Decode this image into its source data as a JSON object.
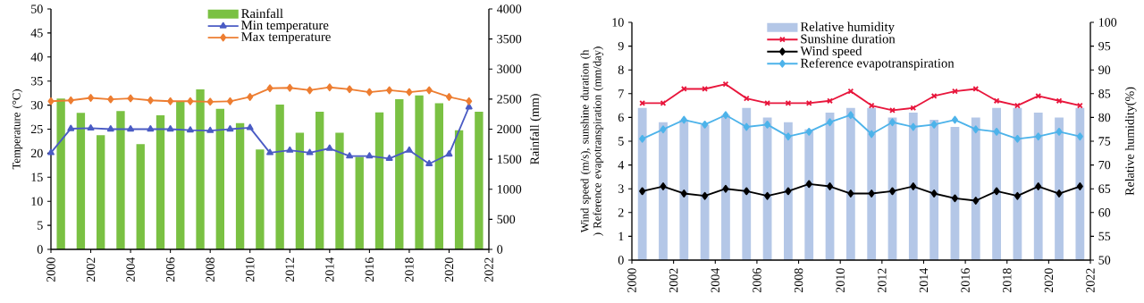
{
  "chart_data": [
    {
      "type": "line",
      "ylabel": "Temperature (°C)",
      "y2label": "Rainfall (mm)",
      "xlim": [
        2000,
        2022
      ],
      "xticks": [
        2000,
        2002,
        2004,
        2006,
        2008,
        2010,
        2012,
        2014,
        2016,
        2018,
        2020,
        2022
      ],
      "ylim": [
        0,
        50
      ],
      "yticks": [
        0,
        5,
        10,
        15,
        20,
        25,
        30,
        35,
        40,
        45,
        50
      ],
      "y2lim": [
        0,
        4000
      ],
      "y2ticks": [
        0,
        500,
        1000,
        1500,
        2000,
        2500,
        3000,
        3500,
        4000
      ],
      "legend": "top",
      "series": [
        {
          "name": "Rainfall",
          "type": "bar",
          "axis": "y2",
          "color": "#7ac143",
          "x": [
            2000.5,
            2001.5,
            2002.5,
            2003.5,
            2004.5,
            2005.5,
            2006.5,
            2007.5,
            2008.5,
            2009.5,
            2010.5,
            2011.5,
            2012.5,
            2013.5,
            2014.5,
            2015.5,
            2016.5,
            2017.5,
            2018.5,
            2019.5,
            2020.5,
            2021.5
          ],
          "values": [
            2510,
            2270,
            1900,
            2300,
            1750,
            2230,
            2460,
            2660,
            2340,
            2100,
            1660,
            2410,
            1940,
            2290,
            1940,
            1540,
            2280,
            2500,
            2560,
            2430,
            1980,
            2290
          ]
        },
        {
          "name": "Min temperature",
          "marker": "triangle",
          "color": "#4a5bc4",
          "x": [
            2000,
            2001,
            2002,
            2003,
            2004,
            2005,
            2006,
            2007,
            2008,
            2009,
            2010,
            2011,
            2012,
            2013,
            2014,
            2015,
            2016,
            2017,
            2018,
            2019,
            2020,
            2021
          ],
          "values": [
            20.1,
            25.1,
            25.2,
            25.0,
            25.0,
            25.0,
            25.0,
            24.8,
            24.7,
            25.0,
            25.3,
            20.1,
            20.6,
            20.1,
            21.0,
            19.4,
            19.4,
            18.9,
            20.6,
            17.8,
            19.8,
            29.6
          ]
        },
        {
          "name": "Max temperature",
          "marker": "diamond",
          "color": "#ed7d31",
          "x": [
            2000,
            2001,
            2002,
            2003,
            2004,
            2005,
            2006,
            2007,
            2008,
            2009,
            2010,
            2011,
            2012,
            2013,
            2014,
            2015,
            2016,
            2017,
            2018,
            2019,
            2020,
            2021
          ],
          "values": [
            30.8,
            31.0,
            31.5,
            31.2,
            31.4,
            31.0,
            30.8,
            30.8,
            30.7,
            30.8,
            31.7,
            33.5,
            33.6,
            33.1,
            33.7,
            33.3,
            32.7,
            33.1,
            32.7,
            33.1,
            31.7,
            30.8
          ]
        }
      ]
    },
    {
      "type": "line",
      "ylabel": "Wind speed (m/s), sunshine duration (h ) Reference evapotranspiration (mm/day)",
      "y2label": "Relative humidity(%)",
      "xlim": [
        2000,
        2022
      ],
      "xticks": [
        2000,
        2002,
        2004,
        2006,
        2008,
        2010,
        2012,
        2014,
        2016,
        2018,
        2020,
        2022
      ],
      "ylim": [
        0,
        10
      ],
      "yticks": [
        0,
        1,
        2,
        3,
        4,
        5,
        6,
        7,
        8,
        9,
        10
      ],
      "y2lim": [
        50,
        100
      ],
      "y2ticks": [
        50,
        55,
        60,
        65,
        70,
        75,
        80,
        85,
        90,
        95,
        100
      ],
      "legend": "top",
      "x": [
        2000.5,
        2001.5,
        2002.5,
        2003.5,
        2004.5,
        2005.5,
        2006.5,
        2007.5,
        2008.5,
        2009.5,
        2010.5,
        2011.5,
        2012.5,
        2013.5,
        2014.5,
        2015.5,
        2016.5,
        2017.5,
        2018.5,
        2019.5,
        2020.5,
        2021.5
      ],
      "series": [
        {
          "name": "Relative humidity",
          "type": "bar",
          "axis": "y2",
          "color": "#b4c7e7",
          "values": [
            82,
            79,
            79.5,
            78.5,
            80.5,
            82,
            80,
            79,
            77.5,
            81,
            82,
            82,
            80,
            81,
            79.5,
            78,
            80,
            82,
            82,
            81,
            80,
            82
          ]
        },
        {
          "name": "Sunshine duration",
          "marker": "cross",
          "color": "#e8163c",
          "values": [
            6.6,
            6.6,
            7.2,
            7.2,
            7.4,
            6.8,
            6.6,
            6.6,
            6.6,
            6.7,
            7.1,
            6.5,
            6.3,
            6.4,
            6.9,
            7.1,
            7.2,
            6.7,
            6.5,
            6.9,
            6.7,
            6.5
          ]
        },
        {
          "name": "Wind speed",
          "marker": "diamond",
          "color": "#000000",
          "values": [
            2.9,
            3.1,
            2.8,
            2.7,
            3.0,
            2.9,
            2.7,
            2.9,
            3.2,
            3.1,
            2.8,
            2.8,
            2.9,
            3.1,
            2.8,
            2.6,
            2.5,
            2.9,
            2.7,
            3.1,
            2.8,
            3.1
          ]
        },
        {
          "name": "Reference evapotranspiration",
          "marker": "diamond",
          "color": "#4db3ea",
          "values": [
            5.1,
            5.5,
            5.9,
            5.7,
            6.1,
            5.6,
            5.7,
            5.2,
            5.4,
            5.8,
            6.1,
            5.3,
            5.8,
            5.6,
            5.7,
            5.9,
            5.5,
            5.4,
            5.1,
            5.2,
            5.4,
            5.2
          ]
        }
      ]
    }
  ]
}
